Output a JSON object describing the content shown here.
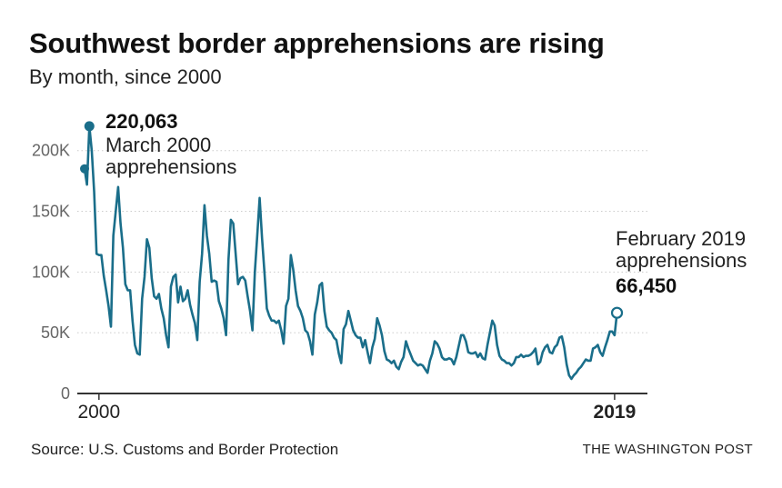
{
  "header": {
    "title": "Southwest border apprehensions are rising",
    "subtitle": "By month, since 2000"
  },
  "footer": {
    "source": "Source: U.S. Customs and Border Protection",
    "credit": "THE WASHINGTON POST"
  },
  "annotations": {
    "start": {
      "value": "220,063",
      "line1": "March 2000",
      "line2": "apprehensions"
    },
    "end": {
      "line1": "February 2019",
      "line2": "apprehensions",
      "value": "66,450"
    }
  },
  "colors": {
    "line": "#1a6e8a",
    "grid": "#cccccc",
    "axis": "#333333"
  },
  "chart_data": {
    "type": "line",
    "title": "Southwest border apprehensions are rising",
    "subtitle": "By month, since 2000",
    "xlabel": "",
    "ylabel": "",
    "xlim": [
      0,
      229
    ],
    "ylim": [
      0,
      220000
    ],
    "yticks": [
      0,
      50000,
      100000,
      150000,
      200000
    ],
    "ytick_labels": [
      "0",
      "50K",
      "100K",
      "150K",
      "200K"
    ],
    "xtick_labels": [
      {
        "label": "2000",
        "x": 6
      },
      {
        "label": "2019",
        "x": 221
      }
    ],
    "grid": true,
    "x_unit": "months since October 1999",
    "series": [
      {
        "values": [
          185000,
          172000,
          220063,
          200000,
          166000,
          115000,
          114000,
          114000,
          97000,
          85000,
          72000,
          55000,
          130000,
          150000,
          170000,
          140000,
          120000,
          90000,
          85000,
          85000,
          60000,
          40000,
          33000,
          32000,
          78000,
          96000,
          127000,
          120000,
          95000,
          80000,
          78000,
          82000,
          70000,
          62000,
          48000,
          38000,
          88000,
          96000,
          98000,
          75000,
          88000,
          76000,
          78000,
          85000,
          73000,
          65000,
          58000,
          44000,
          92000,
          115000,
          155000,
          130000,
          115000,
          92000,
          93000,
          92000,
          76000,
          70000,
          62000,
          48000,
          110000,
          143000,
          140000,
          115000,
          90000,
          95000,
          96000,
          93000,
          80000,
          68000,
          52000,
          100000,
          130000,
          161000,
          128000,
          100000,
          70000,
          64000,
          60000,
          60000,
          58000,
          60000,
          52000,
          41000,
          72000,
          78000,
          114000,
          102000,
          85000,
          72000,
          68000,
          62000,
          52000,
          50000,
          43000,
          32000,
          65000,
          75000,
          89000,
          91000,
          68000,
          55000,
          52000,
          50000,
          46000,
          44000,
          33000,
          25000,
          53000,
          57000,
          68000,
          60000,
          52000,
          48000,
          46000,
          46000,
          38000,
          44000,
          34000,
          25000,
          38000,
          45000,
          62000,
          56000,
          48000,
          35000,
          28000,
          27000,
          25000,
          27000,
          22000,
          20000,
          26000,
          30000,
          43000,
          37000,
          32000,
          27000,
          25000,
          23000,
          24000,
          23000,
          20000,
          17000,
          27000,
          33000,
          43000,
          41000,
          37000,
          30000,
          28000,
          28000,
          29000,
          28000,
          24000,
          30000,
          39000,
          48000,
          48000,
          43000,
          34000,
          33000,
          33000,
          34000,
          30000,
          33000,
          29000,
          28000,
          40000,
          50000,
          60000,
          56000,
          40000,
          31000,
          28000,
          27000,
          25000,
          25000,
          23000,
          25000,
          30000,
          30000,
          32000,
          30000,
          31000,
          31000,
          32000,
          34000,
          37000,
          24000,
          26000,
          34000,
          38000,
          40000,
          34000,
          33000,
          38000,
          40000,
          46000,
          47000,
          38000,
          24000,
          15000,
          12000,
          15000,
          17000,
          20000,
          22000,
          25000,
          28000,
          27000,
          27000,
          37000,
          38000,
          40000,
          34000,
          31000,
          38000,
          44000,
          51000,
          51000,
          48000,
          66450
        ]
      }
    ],
    "highlight_points": [
      {
        "x": 0,
        "y": 185000
      },
      {
        "x": 2,
        "y": 220063
      },
      {
        "x": 222,
        "y": 66450
      }
    ]
  }
}
